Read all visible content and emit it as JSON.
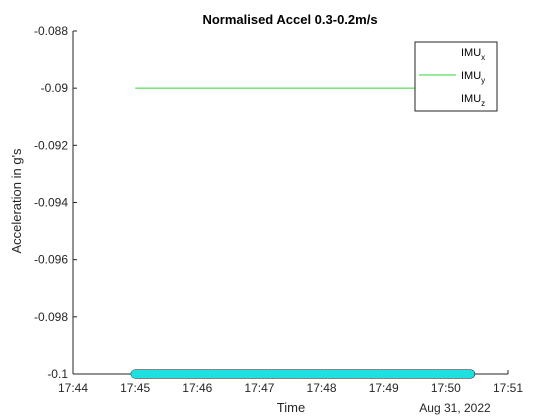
{
  "colors": {
    "background": "#ffffff",
    "axis": "#262626",
    "imu_x": "#000000",
    "imu_y": "#33d633",
    "imu_z": "#1fe0e0"
  },
  "chart_data": {
    "type": "line",
    "title": "Normalised Accel 0.3-0.2m/s",
    "xlabel": "Time",
    "ylabel": "Acceleration in g's",
    "date_label": "Aug 31, 2022",
    "xlim": [
      "17:44",
      "17:51"
    ],
    "ylim": [
      -0.1,
      -0.088
    ],
    "x_ticks": [
      "17:44",
      "17:45",
      "17:46",
      "17:47",
      "17:48",
      "17:49",
      "17:50",
      "17:51"
    ],
    "y_ticks": [
      "-0.088",
      "-0.09",
      "-0.092",
      "-0.094",
      "-0.096",
      "-0.098",
      "-0.1"
    ],
    "y_tick_values": [
      -0.088,
      -0.09,
      -0.092,
      -0.094,
      -0.096,
      -0.098,
      -0.1
    ],
    "grid": false,
    "box": false,
    "legend_position": "top-right",
    "legend": [
      {
        "main": "IMU",
        "sub": "x"
      },
      {
        "main": "IMU",
        "sub": "y"
      },
      {
        "main": "IMU",
        "sub": "z"
      }
    ],
    "series": [
      {
        "key": "imu_x",
        "x": [
          "17:45",
          "17:50.4"
        ],
        "y": [
          -0.1,
          -0.1
        ],
        "markers": true
      },
      {
        "key": "imu_y",
        "x": [
          "17:45",
          "17:50.4"
        ],
        "y": [
          -0.09,
          -0.09
        ],
        "markers": false
      },
      {
        "key": "imu_z",
        "x": [
          "17:45",
          "17:50.4"
        ],
        "y": [
          -0.1,
          -0.1
        ],
        "markers": true
      }
    ]
  }
}
